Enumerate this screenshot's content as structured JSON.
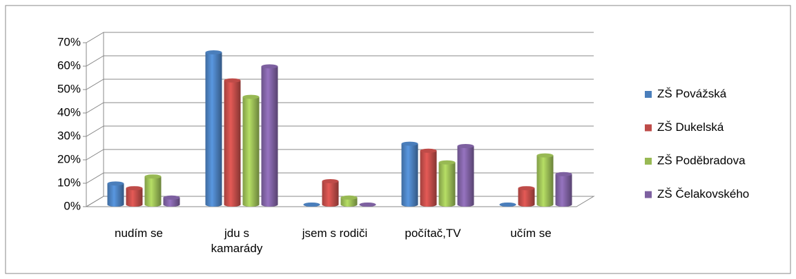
{
  "chart_data": {
    "type": "bar",
    "categories": [
      "nudím se",
      "jdu s kamarády",
      "jsem s rodiči",
      "počítač,TV",
      "učím se"
    ],
    "series": [
      {
        "name": "ZŠ Povážská",
        "color": "#4a7ebb",
        "values": [
          9,
          65,
          0,
          26,
          0
        ]
      },
      {
        "name": "ZŠ Dukelská",
        "color": "#be4b48",
        "values": [
          7,
          53,
          10,
          23,
          7
        ]
      },
      {
        "name": "ZŠ Poděbradova",
        "color": "#98b954",
        "values": [
          12,
          46,
          3,
          18,
          21
        ]
      },
      {
        "name": "ZŠ Čelakovského",
        "color": "#7d60a0",
        "values": [
          3,
          59,
          0,
          25,
          13
        ]
      }
    ],
    "ylim": [
      0,
      70
    ],
    "yticks": [
      {
        "value": 0,
        "label": "0%"
      },
      {
        "value": 10,
        "label": "10%"
      },
      {
        "value": 20,
        "label": "20%"
      },
      {
        "value": 30,
        "label": "30%"
      },
      {
        "value": 40,
        "label": "40%"
      },
      {
        "value": 50,
        "label": "50%"
      },
      {
        "value": 60,
        "label": "60%"
      },
      {
        "value": 70,
        "label": "70%"
      }
    ],
    "grid": true,
    "legend": "right"
  }
}
